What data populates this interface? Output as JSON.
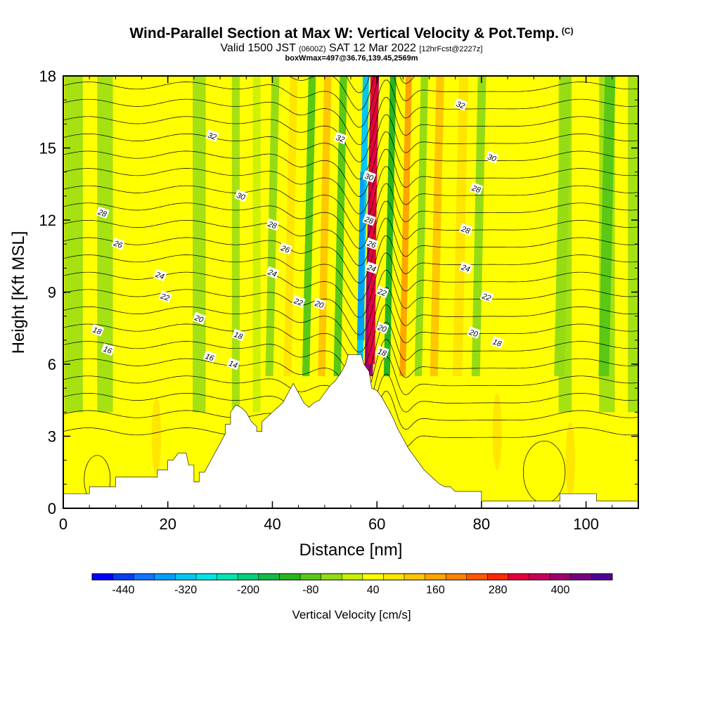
{
  "header": {
    "title": "Wind-Parallel Section at Max W: Vertical Velocity & Pot.Temp.",
    "title_unit": "(C)",
    "subtitle_a": "Valid 1500 JST",
    "subtitle_b": "(0600Z)",
    "subtitle_c": "SAT 12 Mar 2022",
    "subtitle_d": "[12hrFcst@2227z]",
    "box_info": "boxWmax=497@36.76,139.45,2569m"
  },
  "chart_data": {
    "type": "heatmap",
    "title": "Wind-Parallel Section at Max W: Vertical Velocity & Pot.Temp.",
    "xlabel": "Distance [nm]",
    "ylabel": "Height [Kft MSL]",
    "xlim": [
      0,
      110
    ],
    "ylim": [
      0,
      18
    ],
    "xticks": [
      "0",
      "20",
      "40",
      "60",
      "80",
      "100"
    ],
    "yticks": [
      "0",
      "3",
      "6",
      "9",
      "12",
      "15",
      "18"
    ],
    "grid": false,
    "colorbar": {
      "title": "Vertical Velocity [cm/s]",
      "tick_labels": [
        "-440",
        "-320",
        "-200",
        "-80",
        "40",
        "160",
        "280",
        "400"
      ],
      "colors": [
        "#0000ff",
        "#0a3cf0",
        "#1473ff",
        "#00a0ff",
        "#00c8f0",
        "#00e6e6",
        "#00e6b4",
        "#00d27d",
        "#14b946",
        "#28b41e",
        "#5ac814",
        "#96dc14",
        "#c8f000",
        "#ffff00",
        "#ffe600",
        "#ffc800",
        "#ffa500",
        "#ff8200",
        "#ff5a00",
        "#ff2800",
        "#e6003c",
        "#c8005a",
        "#a0006e",
        "#780082",
        "#500096"
      ]
    },
    "terrain": [
      [
        0,
        0.6
      ],
      [
        5,
        0.6
      ],
      [
        5,
        0.9
      ],
      [
        10,
        0.9
      ],
      [
        10,
        1.3
      ],
      [
        18,
        1.3
      ],
      [
        18,
        1.6
      ],
      [
        20,
        1.6
      ],
      [
        20,
        2.0
      ],
      [
        21,
        2.0
      ],
      [
        22,
        2.3
      ],
      [
        23.5,
        2.3
      ],
      [
        24,
        1.8
      ],
      [
        25,
        1.8
      ],
      [
        25,
        1.1
      ],
      [
        26,
        1.1
      ],
      [
        26,
        1.5
      ],
      [
        27,
        1.5
      ],
      [
        28,
        1.9
      ],
      [
        29,
        2.3
      ],
      [
        30,
        2.7
      ],
      [
        31,
        3.1
      ],
      [
        31,
        3.5
      ],
      [
        32,
        3.5
      ],
      [
        32,
        4.0
      ],
      [
        33,
        4.3
      ],
      [
        34,
        4.2
      ],
      [
        35,
        4.0
      ],
      [
        36,
        3.6
      ],
      [
        37,
        3.4
      ],
      [
        37,
        3.2
      ],
      [
        38,
        3.2
      ],
      [
        38,
        3.6
      ],
      [
        39,
        3.8
      ],
      [
        40,
        4.0
      ],
      [
        41,
        4.2
      ],
      [
        42,
        4.4
      ],
      [
        43,
        4.8
      ],
      [
        44,
        5.2
      ],
      [
        45,
        4.8
      ],
      [
        46,
        4.4
      ],
      [
        47,
        4.2
      ],
      [
        48,
        4.4
      ],
      [
        49,
        4.5
      ],
      [
        50,
        4.8
      ],
      [
        51,
        5.1
      ],
      [
        52,
        5.3
      ],
      [
        53,
        5.6
      ],
      [
        54,
        6.0
      ],
      [
        54.5,
        6.4
      ],
      [
        57,
        6.4
      ],
      [
        57.5,
        6.0
      ],
      [
        58.5,
        5.7
      ],
      [
        59,
        5.0
      ],
      [
        60,
        4.9
      ],
      [
        61,
        4.6
      ],
      [
        62,
        4.2
      ],
      [
        63,
        3.8
      ],
      [
        64,
        3.3
      ],
      [
        65,
        2.9
      ],
      [
        66,
        2.5
      ],
      [
        67,
        2.2
      ],
      [
        68,
        1.9
      ],
      [
        69,
        1.6
      ],
      [
        70,
        1.4
      ],
      [
        71,
        1.2
      ],
      [
        72,
        1.0
      ],
      [
        73,
        0.9
      ],
      [
        74,
        0.9
      ],
      [
        75,
        0.7
      ],
      [
        80,
        0.7
      ],
      [
        80,
        0.3
      ],
      [
        95,
        0.3
      ],
      [
        95,
        0.6
      ],
      [
        102,
        0.6
      ],
      [
        102,
        0.3
      ],
      [
        110,
        0.3
      ]
    ],
    "theta_contours": [
      {
        "value": 14,
        "label_x": 32.5,
        "label_y": 6.0
      },
      {
        "value": 16,
        "label_x": 28.0,
        "label_y": 6.3
      },
      {
        "value": 16,
        "label_x": 8.5,
        "label_y": 6.6
      },
      {
        "value": 18,
        "label_x": 6.5,
        "label_y": 7.4
      },
      {
        "value": 18,
        "label_x": 33.5,
        "label_y": 7.2
      },
      {
        "value": 18,
        "label_x": 61.0,
        "label_y": 6.5
      },
      {
        "value": 18,
        "label_x": 83.0,
        "label_y": 6.9
      },
      {
        "value": 20,
        "label_x": 26.0,
        "label_y": 7.9
      },
      {
        "value": 20,
        "label_x": 49.0,
        "label_y": 8.5
      },
      {
        "value": 20,
        "label_x": 61.0,
        "label_y": 7.5
      },
      {
        "value": 20,
        "label_x": 78.5,
        "label_y": 7.3
      },
      {
        "value": 22,
        "label_x": 19.5,
        "label_y": 8.8
      },
      {
        "value": 22,
        "label_x": 45.0,
        "label_y": 8.6
      },
      {
        "value": 22,
        "label_x": 61.0,
        "label_y": 9.0
      },
      {
        "value": 22,
        "label_x": 81.0,
        "label_y": 8.8
      },
      {
        "value": 24,
        "label_x": 18.5,
        "label_y": 9.7
      },
      {
        "value": 24,
        "label_x": 40.0,
        "label_y": 9.8
      },
      {
        "value": 24,
        "label_x": 59.0,
        "label_y": 10.0
      },
      {
        "value": 24,
        "label_x": 77.0,
        "label_y": 10.0
      },
      {
        "value": 26,
        "label_x": 10.5,
        "label_y": 11.0
      },
      {
        "value": 26,
        "label_x": 42.5,
        "label_y": 10.8
      },
      {
        "value": 26,
        "label_x": 59.0,
        "label_y": 11.0
      },
      {
        "value": 28,
        "label_x": 7.5,
        "label_y": 12.3
      },
      {
        "value": 28,
        "label_x": 40.0,
        "label_y": 11.8
      },
      {
        "value": 28,
        "label_x": 58.5,
        "label_y": 12.0
      },
      {
        "value": 28,
        "label_x": 77.0,
        "label_y": 11.6
      },
      {
        "value": 28,
        "label_x": 79.0,
        "label_y": 13.3
      },
      {
        "value": 30,
        "label_x": 34.0,
        "label_y": 13.0
      },
      {
        "value": 30,
        "label_x": 58.5,
        "label_y": 13.8
      },
      {
        "value": 30,
        "label_x": 82.0,
        "label_y": 14.6
      },
      {
        "value": 32,
        "label_x": 28.5,
        "label_y": 15.5
      },
      {
        "value": 32,
        "label_x": 53.0,
        "label_y": 15.4
      },
      {
        "value": 32,
        "label_x": 76.0,
        "label_y": 16.8
      }
    ],
    "w_features": [
      {
        "x": 59.0,
        "width": 1.6,
        "w": 400
      },
      {
        "x": 57.3,
        "width": 1.2,
        "w": -320
      },
      {
        "x": 62.5,
        "width": 1.2,
        "w": -120
      },
      {
        "x": 65.5,
        "width": 1.2,
        "w": 140
      },
      {
        "x": 68.5,
        "width": 1.4,
        "w": -60
      },
      {
        "x": 71.5,
        "width": 1.5,
        "w": 110
      },
      {
        "x": 53.0,
        "width": 1.4,
        "w": -100
      },
      {
        "x": 50.0,
        "width": 1.4,
        "w": 100
      },
      {
        "x": 47.0,
        "width": 1.4,
        "w": -90
      },
      {
        "x": 43.5,
        "width": 1.5,
        "w": 90
      },
      {
        "x": 40.0,
        "width": 1.5,
        "w": -60
      },
      {
        "x": 76.0,
        "width": 1.8,
        "w": 80
      },
      {
        "x": 79.5,
        "width": 1.6,
        "w": -50
      },
      {
        "x": 95.5,
        "width": 2.0,
        "w": -40
      },
      {
        "x": 104.0,
        "width": 2.0,
        "w": -70
      }
    ]
  }
}
